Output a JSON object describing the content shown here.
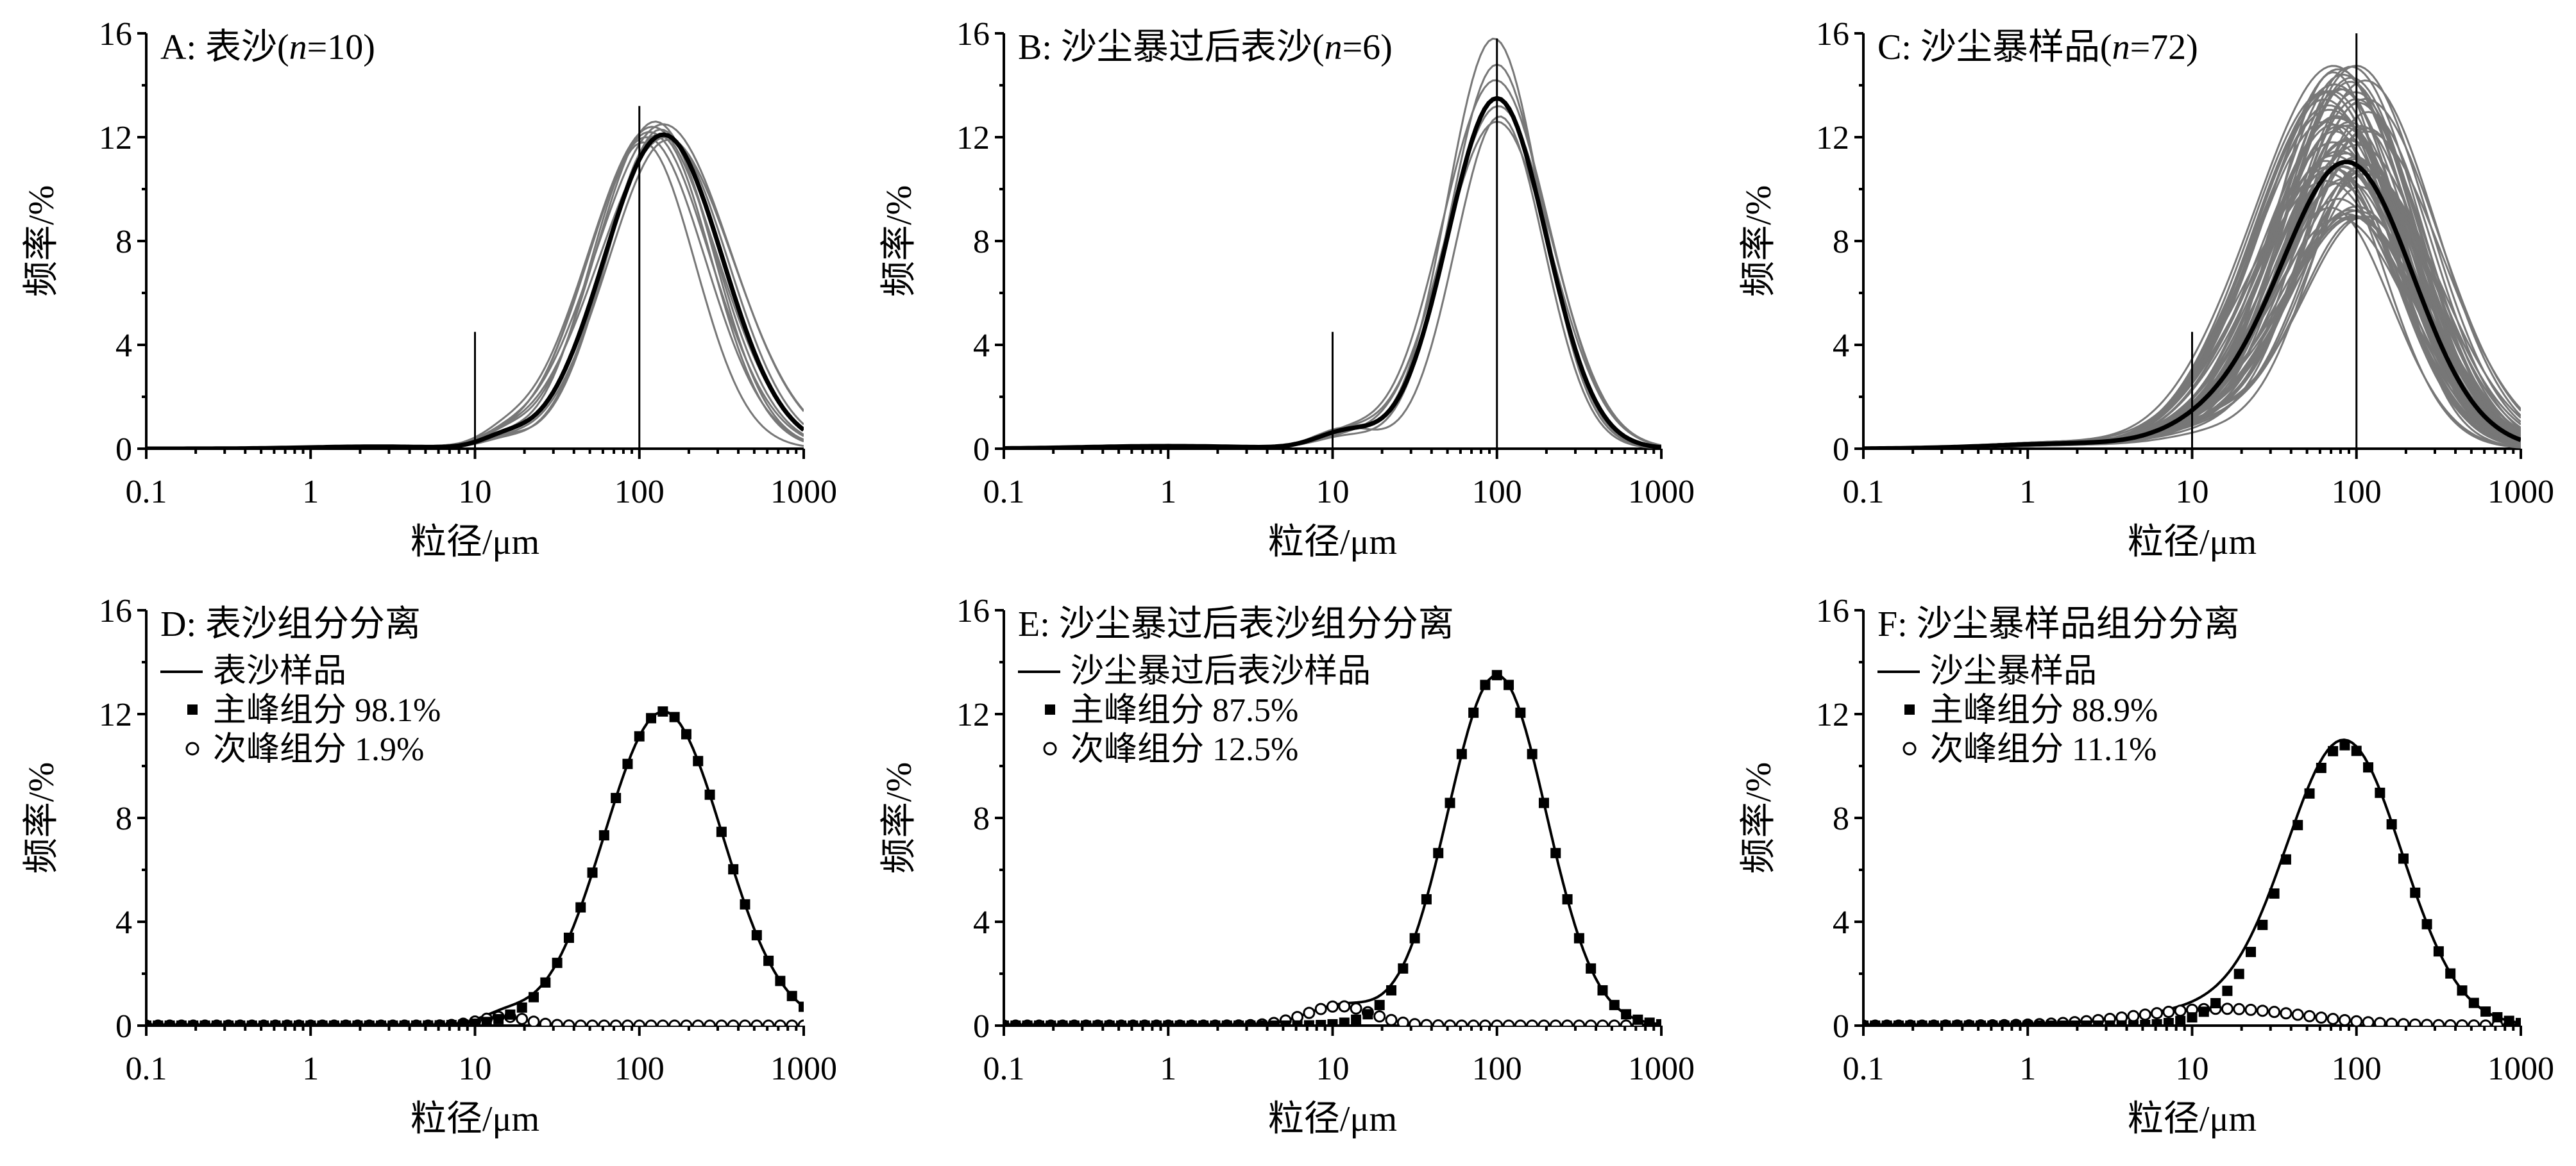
{
  "figure": {
    "xticks": [
      "0.1",
      "1",
      "10",
      "100",
      "1000"
    ],
    "yticks": [
      "0",
      "4",
      "8",
      "12",
      "16"
    ]
  },
  "chart_data": [
    {
      "id": "A",
      "type": "line",
      "title": "A: 表沙(n=10)",
      "title_prefix": "A: 表沙(",
      "title_n": "n",
      "title_suffix": "=10)",
      "xlabel": "粒径/μm",
      "ylabel": "频率/%",
      "xscale": "log",
      "xlim": [
        0.1,
        1000
      ],
      "ylim": [
        0,
        16
      ],
      "mode_lines": [
        {
          "x": 10,
          "y": 4.5
        },
        {
          "x": 100,
          "y": 13.2
        }
      ],
      "samples": {
        "count": 10,
        "modes": [
          105,
          110,
          115,
          120,
          125,
          130,
          135,
          140,
          145,
          150
        ],
        "peaks": [
          11.8,
          12.0,
          12.2,
          12.4,
          12.6,
          12.1,
          12.3,
          12.5,
          12.0,
          11.9
        ],
        "sigma": 0.36,
        "color": "#777777"
      },
      "mean": {
        "mode": 140,
        "peak": 12.1,
        "sigma": 0.36,
        "secondary": [
          {
            "mode": 15,
            "peak": 0.35,
            "sigma": 0.14
          },
          {
            "mode": 2.5,
            "peak": 0.08,
            "sigma": 0.4
          }
        ],
        "color": "#000000"
      }
    },
    {
      "id": "B",
      "type": "line",
      "title": "B: 沙尘暴过后表沙(n=6)",
      "title_prefix": "B: 沙尘暴过后表沙(",
      "title_n": "n",
      "title_suffix": "=6)",
      "xlabel": "粒径/μm",
      "ylabel": "频率/%",
      "xscale": "log",
      "xlim": [
        0.1,
        1000
      ],
      "ylim": [
        0,
        16
      ],
      "mode_lines": [
        {
          "x": 10,
          "y": 4.5
        },
        {
          "x": 100,
          "y": 15.8
        }
      ],
      "samples": {
        "count": 6,
        "modes": [
          96,
          98,
          100,
          102,
          104,
          100
        ],
        "peaks": [
          15.8,
          14.2,
          12.6,
          13.2,
          12.8,
          14.8
        ],
        "sigma": 0.3,
        "color": "#777777"
      },
      "mean": {
        "mode": 100,
        "peak": 13.5,
        "sigma": 0.3,
        "secondary": [
          {
            "mode": 12,
            "peak": 0.62,
            "sigma": 0.18
          },
          {
            "mode": 1.0,
            "peak": 0.1,
            "sigma": 0.5
          }
        ],
        "color": "#000000"
      }
    },
    {
      "id": "C",
      "type": "line",
      "title": "C: 沙尘暴样品(n=72)",
      "title_prefix": "C: 沙尘暴样品(",
      "title_n": "n",
      "title_suffix": "=72)",
      "xlabel": "粒径/μm",
      "ylabel": "频率/%",
      "xscale": "log",
      "xlim": [
        0.1,
        1000
      ],
      "ylim": [
        0,
        16
      ],
      "mode_lines": [
        {
          "x": 10,
          "y": 4.5
        },
        {
          "x": 100,
          "y": 16
        }
      ],
      "samples": {
        "count": 72,
        "mode_range": [
          65,
          120
        ],
        "peak_range": [
          8.8,
          15.0
        ],
        "sigma": 0.4,
        "color": "#777777"
      },
      "mean": {
        "mode": 88,
        "peak": 11.0,
        "sigma": 0.4,
        "secondary": [
          {
            "mode": 15,
            "peak": 0.85,
            "sigma": 0.32
          },
          {
            "mode": 2.0,
            "peak": 0.2,
            "sigma": 0.5
          }
        ],
        "color": "#000000"
      }
    },
    {
      "id": "D",
      "type": "line",
      "title": "D: 表沙组分分离",
      "xlabel": "粒径/μm",
      "ylabel": "频率/%",
      "xscale": "log",
      "xlim": [
        0.1,
        1000
      ],
      "ylim": [
        0,
        16
      ],
      "legend": {
        "placement": "top-left",
        "sample_label": "表沙样品",
        "main_label": "主峰组分 98.1%",
        "minor_label": "次峰组分 1.9%"
      },
      "series": [
        {
          "name": "表沙样品",
          "marker": "line",
          "color": "#000000"
        },
        {
          "name": "主峰组分",
          "share_percent": 98.1,
          "marker": "filled-square",
          "mode": 140,
          "peak": 12.1,
          "sigma": 0.36
        },
        {
          "name": "次峰组分",
          "share_percent": 1.9,
          "marker": "open-circle",
          "mode": 15,
          "peak": 0.35,
          "sigma": 0.14
        }
      ]
    },
    {
      "id": "E",
      "type": "line",
      "title": "E: 沙尘暴过后表沙组分分离",
      "xlabel": "粒径/μm",
      "ylabel": "频率/%",
      "xscale": "log",
      "xlim": [
        0.1,
        1000
      ],
      "ylim": [
        0,
        16
      ],
      "legend": {
        "placement": "top-left",
        "sample_label": "沙尘暴过后表沙样品",
        "main_label": "主峰组分 87.5%",
        "minor_label": "次峰组分 12.5%"
      },
      "series": [
        {
          "name": "沙尘暴过后表沙样品",
          "marker": "line",
          "color": "#000000"
        },
        {
          "name": "主峰组分",
          "share_percent": 87.5,
          "marker": "filled-square",
          "mode": 100,
          "peak": 13.5,
          "sigma": 0.3
        },
        {
          "name": "次峰组分",
          "share_percent": 12.5,
          "marker": "open-circle",
          "mode": 11,
          "peak": 0.75,
          "sigma": 0.2
        }
      ]
    },
    {
      "id": "F",
      "type": "line",
      "title": "F: 沙尘暴样品组分分离",
      "xlabel": "粒径/μm",
      "ylabel": "频率/%",
      "xscale": "log",
      "xlim": [
        0.1,
        1000
      ],
      "ylim": [
        0,
        16
      ],
      "legend": {
        "placement": "top-left",
        "sample_label": "沙尘暴样品",
        "main_label": "主峰组分 88.9%",
        "minor_label": "次峰组分 11.1%"
      },
      "series": [
        {
          "name": "沙尘暴样品",
          "marker": "line",
          "color": "#000000"
        },
        {
          "name": "主峰组分",
          "share_percent": 88.9,
          "marker": "filled-square",
          "mode": 85,
          "peak": 10.8,
          "sigma": 0.35
        },
        {
          "name": "次峰组分",
          "share_percent": 11.1,
          "marker": "open-circle",
          "mode": 15,
          "peak": 0.65,
          "sigma": 0.5
        }
      ]
    }
  ]
}
